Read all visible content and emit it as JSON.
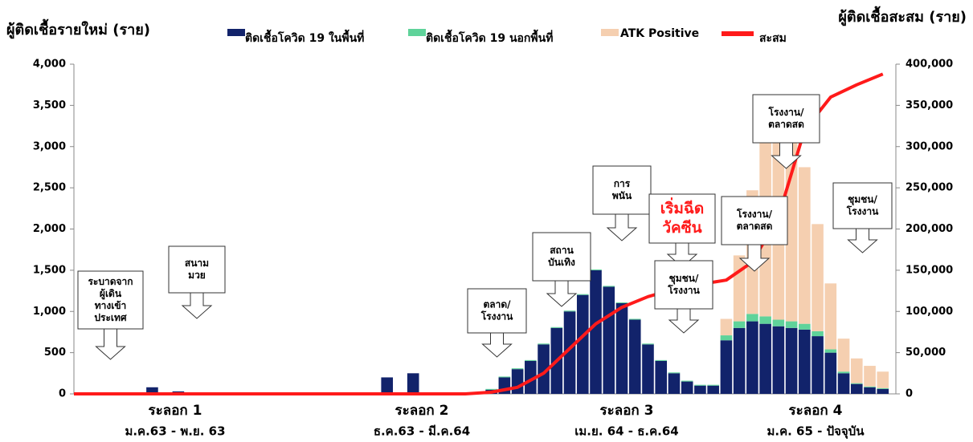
{
  "chart_data": {
    "type": "bar",
    "ylabel": "ผู้ติดเชื้อรายใหม่ (ราย)",
    "y2label": "ผู้ติดเชื้อสะสม (ราย)",
    "x": [
      2,
      3,
      11,
      12,
      15,
      15.5,
      16,
      16.5,
      17,
      17.5,
      18,
      18.5,
      19,
      19.5,
      20,
      20.5,
      21,
      21.5,
      22,
      22.5,
      23,
      23.5,
      24,
      24.5,
      25,
      25.5,
      26,
      26.5,
      27,
      27.5,
      28,
      28.5,
      29,
      29.5,
      30
    ],
    "xlim": [
      -1,
      30.5
    ],
    "ylim": [
      0,
      4000
    ],
    "yticks": [
      0,
      500,
      {
        "value": 1000,
        "label": "1,000"
      },
      {
        "value": 1500,
        "label": "1,500"
      },
      {
        "value": 2000,
        "label": "2,000"
      },
      {
        "value": 2500,
        "label": "2,500"
      },
      {
        "value": 3000,
        "label": "3,000"
      },
      {
        "value": 3500,
        "label": "3,500"
      },
      {
        "value": 4000,
        "label": "4,000"
      }
    ],
    "y2lim": [
      0,
      400000
    ],
    "y2ticks": [
      0,
      {
        "value": 50000,
        "label": "50,000"
      },
      {
        "value": 100000,
        "label": "100,000"
      },
      {
        "value": 150000,
        "label": "150,000"
      },
      {
        "value": 200000,
        "label": "200,000"
      },
      {
        "value": 250000,
        "label": "250,000"
      },
      {
        "value": 300000,
        "label": "300,000"
      },
      {
        "value": 350000,
        "label": "350,000"
      },
      {
        "value": 400000,
        "label": "400,000"
      }
    ],
    "series": [
      {
        "name": "ติดเชื้อโควิด 19 ในพื้นที่",
        "color": "#12236b",
        "values": [
          80,
          30,
          200,
          250,
          50,
          200,
          300,
          400,
          600,
          800,
          1000,
          1200,
          1500,
          1300,
          1100,
          900,
          600,
          400,
          250,
          150,
          100,
          100,
          650,
          800,
          880,
          850,
          820,
          800,
          780,
          700,
          500,
          250,
          120,
          80,
          60
        ]
      },
      {
        "name": "ติดเชื้อโควิด 19 นอกพื้นที่",
        "color": "#5fd39a",
        "values": [
          0,
          0,
          0,
          0,
          10,
          10,
          10,
          10,
          10,
          10,
          10,
          10,
          10,
          10,
          10,
          10,
          10,
          10,
          10,
          10,
          10,
          10,
          60,
          80,
          90,
          90,
          80,
          80,
          70,
          60,
          40,
          20,
          10,
          10,
          10
        ]
      },
      {
        "name": "ATK Positive",
        "color": "#f5cfb0",
        "values": [
          0,
          0,
          0,
          0,
          0,
          0,
          0,
          0,
          0,
          0,
          0,
          0,
          0,
          0,
          0,
          0,
          0,
          0,
          0,
          0,
          0,
          0,
          200,
          800,
          1500,
          2200,
          2400,
          2300,
          1900,
          1300,
          800,
          400,
          300,
          250,
          200
        ]
      },
      {
        "name": "สะสม",
        "color": "#ff1a1a",
        "type": "line",
        "axis": "y2",
        "x": [
          -1,
          14,
          15,
          16,
          17,
          18,
          19,
          20,
          21,
          22,
          23,
          24,
          25,
          26,
          27,
          28,
          29,
          30
        ],
        "values": [
          0,
          0,
          2000,
          8000,
          25000,
          55000,
          85000,
          105000,
          118000,
          127000,
          133000,
          138000,
          160000,
          215000,
          320000,
          360000,
          375000,
          388000
        ]
      }
    ],
    "annotations": [
      {
        "lines": [
          "ระบาดจาก",
          "ผู้เดิน",
          "ทางเข้า",
          "ประเทศ"
        ]
      },
      {
        "lines": [
          "สนาม",
          "มวย"
        ]
      },
      {
        "lines": [
          "ตลาด/",
          "โรงงาน"
        ]
      },
      {
        "lines": [
          "สถาน",
          "บันเทิง"
        ]
      },
      {
        "lines": [
          "การ",
          "พนัน"
        ]
      },
      {
        "lines": [
          "เริ่มฉีด",
          "วัคซีน"
        ]
      },
      {
        "lines": [
          "ชุมชน/",
          "โรงงาน"
        ]
      },
      {
        "lines": [
          "โรงงาน/",
          "ตลาดสด"
        ]
      },
      {
        "lines": [
          "โรงงาน/",
          "ตลาดสด"
        ]
      },
      {
        "lines": [
          "ชุมชน/",
          "โรงงาน"
        ]
      }
    ],
    "waves": [
      {
        "name": "ระลอก 1",
        "period": "ม.ค.63 - พ.ย. 63"
      },
      {
        "name": "ระลอก 2",
        "period": "ธ.ค.63 - มี.ค.64"
      },
      {
        "name": "ระลอก 3",
        "period": "เม.ย. 64 - ธ.ค.64"
      },
      {
        "name": "ระลอก 4",
        "period": "ม.ค. 65 - ปัจจุบัน"
      }
    ]
  }
}
